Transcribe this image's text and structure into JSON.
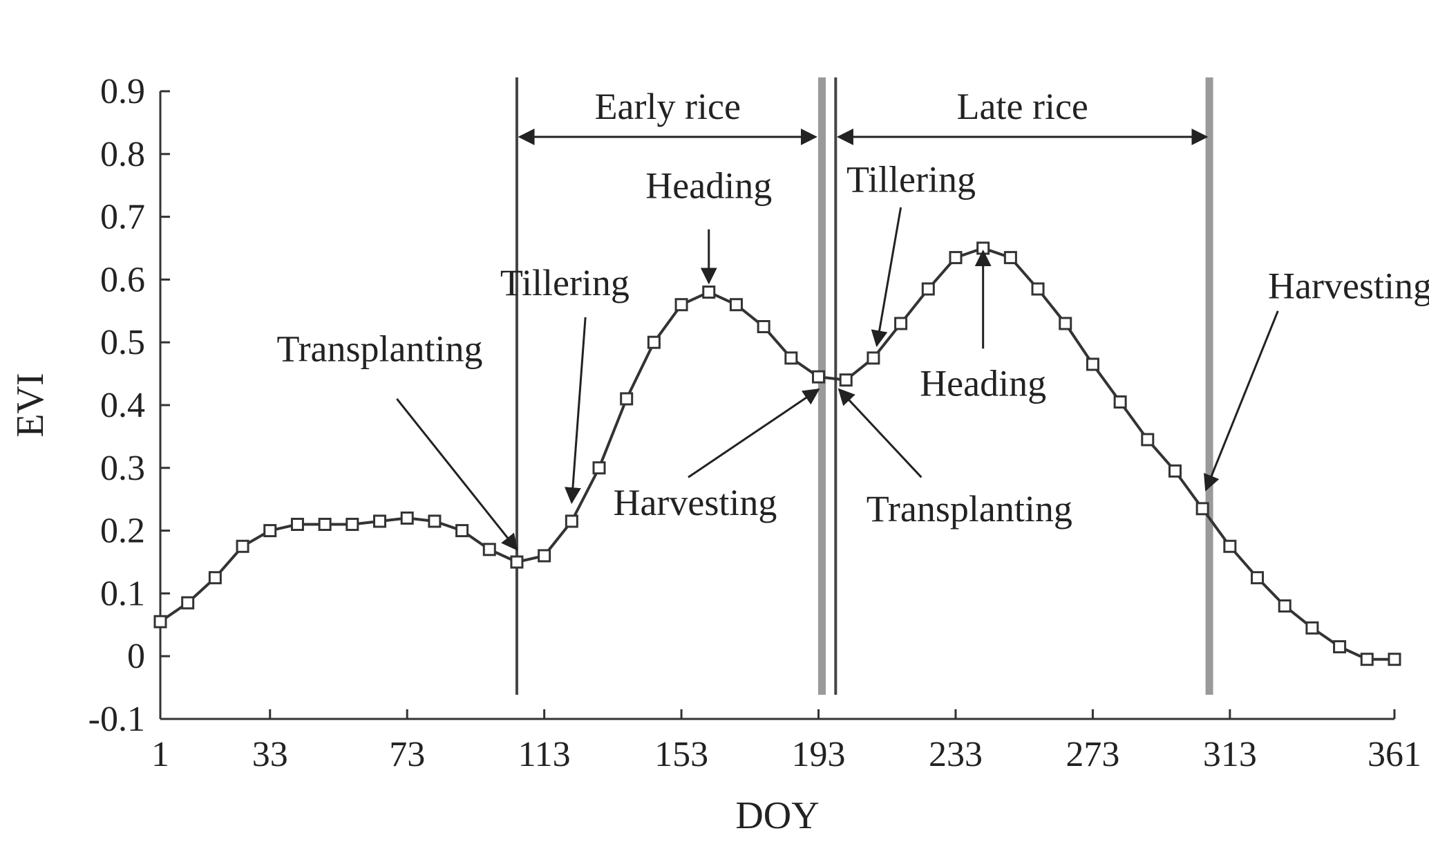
{
  "chart_data": {
    "type": "line",
    "xlabel": "DOY",
    "ylabel": "EVI",
    "xlim": [
      1,
      361
    ],
    "ylim": [
      -0.1,
      0.9
    ],
    "xticks": [
      1,
      33,
      73,
      113,
      153,
      193,
      233,
      273,
      313,
      361
    ],
    "yticks": [
      -0.1,
      0,
      0.1,
      0.2,
      0.3,
      0.4,
      0.5,
      0.6,
      0.7,
      0.8,
      0.9
    ],
    "grid": false,
    "series": [
      {
        "marker": "square",
        "color": "#333333",
        "x": [
          1,
          9,
          17,
          25,
          33,
          41,
          49,
          57,
          65,
          73,
          81,
          89,
          97,
          105,
          113,
          121,
          129,
          137,
          145,
          153,
          161,
          169,
          177,
          185,
          193,
          201,
          209,
          217,
          225,
          233,
          241,
          249,
          257,
          265,
          273,
          281,
          289,
          297,
          305,
          313,
          321,
          329,
          337,
          345,
          353,
          361
        ],
        "y": [
          0.055,
          0.085,
          0.125,
          0.175,
          0.2,
          0.21,
          0.21,
          0.21,
          0.215,
          0.22,
          0.215,
          0.2,
          0.17,
          0.15,
          0.16,
          0.215,
          0.3,
          0.41,
          0.5,
          0.56,
          0.58,
          0.56,
          0.525,
          0.475,
          0.445,
          0.44,
          0.475,
          0.53,
          0.585,
          0.635,
          0.65,
          0.635,
          0.585,
          0.53,
          0.465,
          0.405,
          0.345,
          0.295,
          0.235,
          0.175,
          0.125,
          0.08,
          0.045,
          0.015,
          -0.005,
          -0.005
        ]
      }
    ],
    "vertical_lines": [
      {
        "x": 105,
        "weight": "thin"
      },
      {
        "x": 194,
        "weight": "thick"
      },
      {
        "x": 198,
        "weight": "thin"
      },
      {
        "x": 307,
        "weight": "thick"
      }
    ],
    "periods": [
      {
        "label": "Early rice",
        "from": 105,
        "to": 193
      },
      {
        "label": "Late rice",
        "from": 198,
        "to": 307
      }
    ],
    "annotations": [
      {
        "text": "Transplanting",
        "tip": [
          105,
          0.17
        ],
        "tail": [
          70,
          0.41
        ],
        "label_at": [
          65,
          0.47
        ],
        "anchor": "middle"
      },
      {
        "text": "Tillering",
        "tip": [
          121,
          0.245
        ],
        "tail": [
          125,
          0.54
        ],
        "label_at": [
          119,
          0.575
        ],
        "anchor": "middle"
      },
      {
        "text": "Heading",
        "tip": [
          161,
          0.595
        ],
        "tail": [
          161,
          0.68
        ],
        "label_at": [
          161,
          0.73
        ],
        "anchor": "middle"
      },
      {
        "text": "Harvesting",
        "tip": [
          193,
          0.425
        ],
        "tail": [
          155,
          0.285
        ],
        "label_at": [
          157,
          0.225
        ],
        "anchor": "middle"
      },
      {
        "text": "Transplanting",
        "tip": [
          199,
          0.425
        ],
        "tail": [
          223,
          0.285
        ],
        "label_at": [
          237,
          0.215
        ],
        "anchor": "middle"
      },
      {
        "text": "Tillering",
        "tip": [
          210,
          0.495
        ],
        "tail": [
          217,
          0.715
        ],
        "label_at": [
          220,
          0.74
        ],
        "anchor": "middle"
      },
      {
        "text": "Heading",
        "tip": [
          241,
          0.645
        ],
        "tail": [
          241,
          0.49
        ],
        "label_at": [
          241,
          0.415
        ],
        "anchor": "middle"
      },
      {
        "text": "Harvesting",
        "tip": [
          306,
          0.265
        ],
        "tail": [
          327,
          0.55
        ],
        "label_at": [
          348,
          0.57
        ],
        "anchor": "middle"
      }
    ]
  }
}
